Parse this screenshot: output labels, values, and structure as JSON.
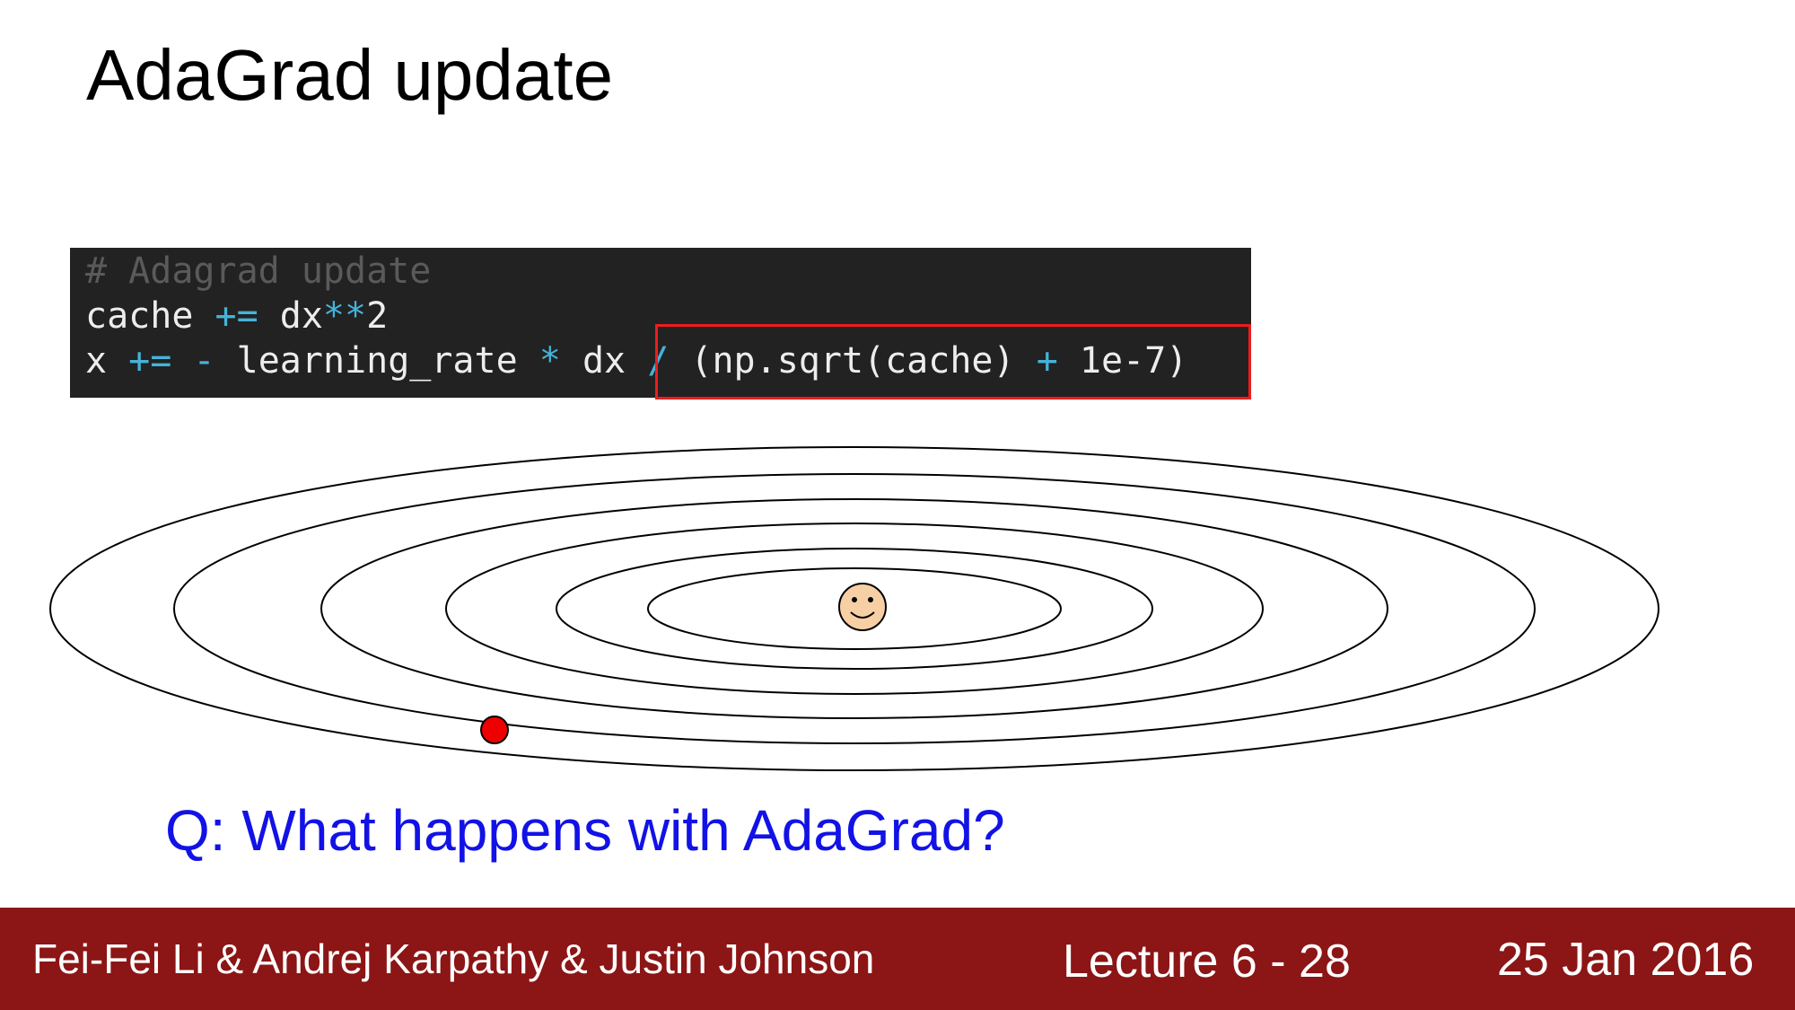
{
  "slide": {
    "title": "AdaGrad update",
    "question": "Q: What happens with AdaGrad?"
  },
  "code": {
    "comment": "# Adagrad update",
    "line2": {
      "var": "cache ",
      "op1": "+=",
      "mid": " dx",
      "op2": "**",
      "end": "2"
    },
    "line3": {
      "var": "x ",
      "op1": "+=",
      "sp1": " ",
      "op2": "-",
      "mid": " learning_rate ",
      "op3": "*",
      "mid2": " dx ",
      "op4": "/",
      "mid3": " (np.sqrt(cache) ",
      "op5": "+",
      "end": " 1e-7)"
    }
  },
  "footer": {
    "authors": "Fei-Fei Li & Andrej Karpathy & Justin Johnson",
    "lecture": "Lecture 6 - 28",
    "date": "25 Jan 2016"
  },
  "colors": {
    "footer_bg": "#8c1515",
    "question": "#1212e6",
    "code_bg": "#222222",
    "highlight": "#ee1c1c",
    "operator": "#45b3d9",
    "marker": "#ee0000",
    "smiley_face": "#f7cfa4"
  },
  "icons": {
    "current_point": "red-dot-marker",
    "optimum": "smiley-face-icon"
  }
}
